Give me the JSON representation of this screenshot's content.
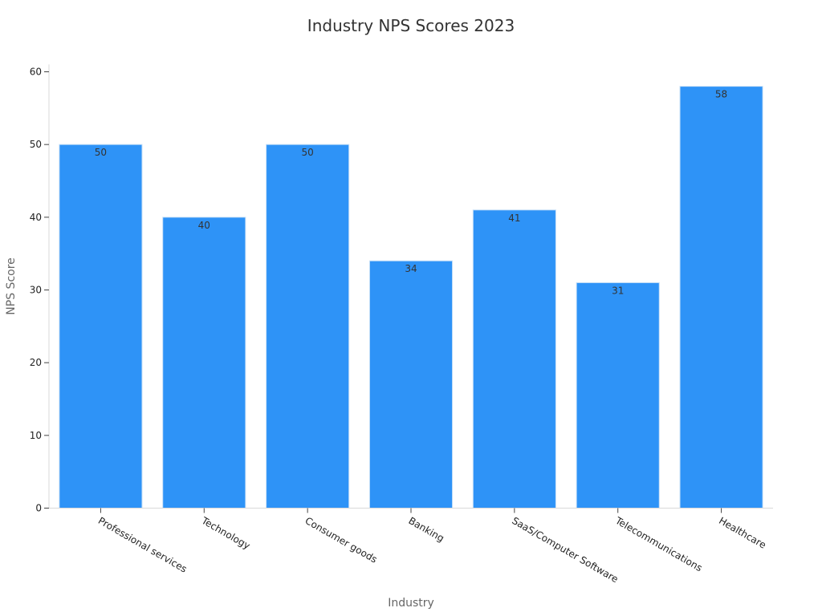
{
  "chart_data": {
    "type": "bar",
    "title": "Industry NPS Scores 2023",
    "xlabel": "Industry",
    "ylabel": "NPS Score",
    "categories": [
      "Professional services",
      "Technology",
      "Consumer goods",
      "Banking",
      "SaaS/Computer Software",
      "Telecommunications",
      "Healthcare"
    ],
    "values": [
      50,
      40,
      50,
      34,
      41,
      31,
      58
    ],
    "ylim": [
      0,
      61
    ],
    "yticks": [
      0,
      10,
      20,
      30,
      40,
      50,
      60
    ],
    "bar_color": "#2e93f7",
    "bar_edge_color": "#c6dff7",
    "grid": false,
    "legend": "none",
    "data_labels": true
  }
}
